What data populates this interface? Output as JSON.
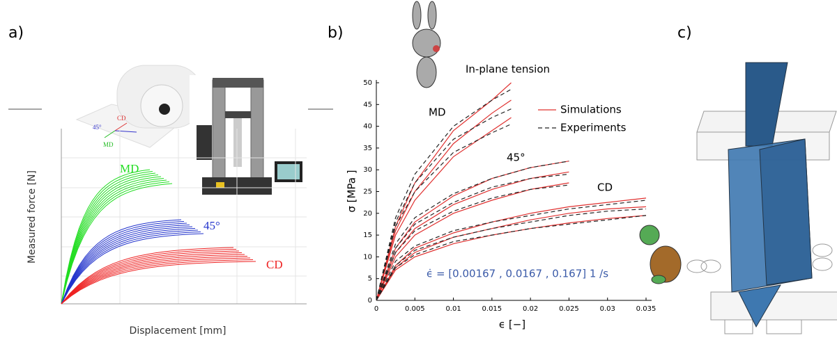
{
  "panel_labels": [
    "a)",
    "b)",
    "c)"
  ],
  "chart_data": [
    {
      "type": "line",
      "xlabel": "Displacement [mm]",
      "ylabel": "Measured force [N]",
      "curve_labels": [
        "MD",
        "45°",
        "CD"
      ],
      "colors": [
        "#22dd22",
        "#2233cc",
        "#ee2222"
      ],
      "photo_labels": [
        "CD",
        "45°",
        "MD"
      ],
      "grid": true
    },
    {
      "type": "line",
      "title": "In-plane tension",
      "xlabel": "ϵ [−]",
      "ylabel": "σ [MPa ]",
      "annotation": "ϵ̇ = [0.00167 , 0.0167 , 0.167] 1 /s",
      "curve_labels": [
        "MD",
        "45°",
        "CD"
      ],
      "xlim": [
        0,
        0.035
      ],
      "xticks": [
        0,
        0.005,
        0.01,
        0.015,
        0.02,
        0.025,
        0.03,
        0.035
      ],
      "ylim": [
        0,
        50
      ],
      "yticks": [
        0,
        5,
        10,
        15,
        20,
        25,
        30,
        35,
        40,
        45,
        50
      ],
      "series": [
        {
          "name": "Simulations",
          "color": "#e0302f",
          "dashed": false,
          "lines": [
            {
              "x": [
                0,
                0.0025,
                0.005,
                0.01,
                0.015,
                0.0175
              ],
              "values": [
                0,
                17,
                27,
                39,
                46,
                50
              ]
            },
            {
              "x": [
                0,
                0.0025,
                0.005,
                0.01,
                0.015,
                0.0175
              ],
              "values": [
                0,
                16,
                25,
                36,
                43,
                46
              ]
            },
            {
              "x": [
                0,
                0.0025,
                0.005,
                0.01,
                0.015,
                0.0175
              ],
              "values": [
                0,
                15,
                23,
                33,
                39,
                42
              ]
            },
            {
              "x": [
                0,
                0.0025,
                0.005,
                0.01,
                0.015,
                0.02,
                0.025
              ],
              "values": [
                0,
                12,
                18,
                24,
                28,
                30.5,
                32
              ]
            },
            {
              "x": [
                0,
                0.0025,
                0.005,
                0.01,
                0.015,
                0.02,
                0.025
              ],
              "values": [
                0,
                11,
                16.5,
                22,
                25.5,
                28,
                29.5
              ]
            },
            {
              "x": [
                0,
                0.0025,
                0.005,
                0.01,
                0.015,
                0.02,
                0.025
              ],
              "values": [
                0,
                10,
                15,
                20,
                23,
                25.5,
                27
              ]
            },
            {
              "x": [
                0,
                0.0025,
                0.005,
                0.01,
                0.015,
                0.02,
                0.025,
                0.03,
                0.035
              ],
              "values": [
                0,
                8,
                12,
                15.5,
                18,
                20,
                21.5,
                22.5,
                23.5
              ]
            },
            {
              "x": [
                0,
                0.0025,
                0.005,
                0.01,
                0.015,
                0.02,
                0.025,
                0.03,
                0.035
              ],
              "values": [
                0,
                7.5,
                11,
                14.5,
                16.5,
                18.5,
                20,
                21,
                21.5
              ]
            },
            {
              "x": [
                0,
                0.0025,
                0.005,
                0.01,
                0.015,
                0.02,
                0.025,
                0.03,
                0.035
              ],
              "values": [
                0,
                7,
                10,
                13,
                15,
                16.5,
                17.8,
                18.8,
                19.5
              ]
            }
          ]
        },
        {
          "name": "Experiments",
          "color": "#222222",
          "dashed": true,
          "lines": [
            {
              "x": [
                0,
                0.0025,
                0.005,
                0.01,
                0.015,
                0.0175
              ],
              "values": [
                0,
                19,
                29,
                40,
                46,
                48.5
              ]
            },
            {
              "x": [
                0,
                0.0025,
                0.005,
                0.01,
                0.015,
                0.0175
              ],
              "values": [
                0,
                18,
                27,
                37,
                42,
                44
              ]
            },
            {
              "x": [
                0,
                0.0025,
                0.005,
                0.01,
                0.015,
                0.0175
              ],
              "values": [
                0,
                17,
                25,
                34,
                38.5,
                40.5
              ]
            },
            {
              "x": [
                0,
                0.0025,
                0.005,
                0.01,
                0.015,
                0.02,
                0.025
              ],
              "values": [
                0,
                13,
                19,
                24.5,
                28,
                30.5,
                32
              ]
            },
            {
              "x": [
                0,
                0.0025,
                0.005,
                0.01,
                0.015,
                0.02,
                0.025
              ],
              "values": [
                0,
                12,
                17.5,
                22.5,
                26,
                28,
                29
              ]
            },
            {
              "x": [
                0,
                0.0025,
                0.005,
                0.01,
                0.015,
                0.02,
                0.025
              ],
              "values": [
                0,
                11,
                16,
                20.5,
                23.5,
                25.5,
                26.5
              ]
            },
            {
              "x": [
                0,
                0.0025,
                0.005,
                0.01,
                0.015,
                0.02,
                0.025,
                0.03,
                0.035
              ],
              "values": [
                0,
                9,
                12.5,
                16,
                18,
                19.5,
                21,
                22,
                23
              ]
            },
            {
              "x": [
                0,
                0.0025,
                0.005,
                0.01,
                0.015,
                0.02,
                0.025,
                0.03,
                0.035
              ],
              "values": [
                0,
                8,
                11.5,
                14.5,
                16.5,
                18,
                19.5,
                20.5,
                21
              ]
            },
            {
              "x": [
                0,
                0.0025,
                0.005,
                0.01,
                0.015,
                0.02,
                0.025,
                0.03,
                0.035
              ],
              "values": [
                0,
                7.5,
                10.5,
                13.5,
                15,
                16.5,
                17.5,
                18.5,
                19.5
              ]
            }
          ]
        }
      ]
    }
  ]
}
